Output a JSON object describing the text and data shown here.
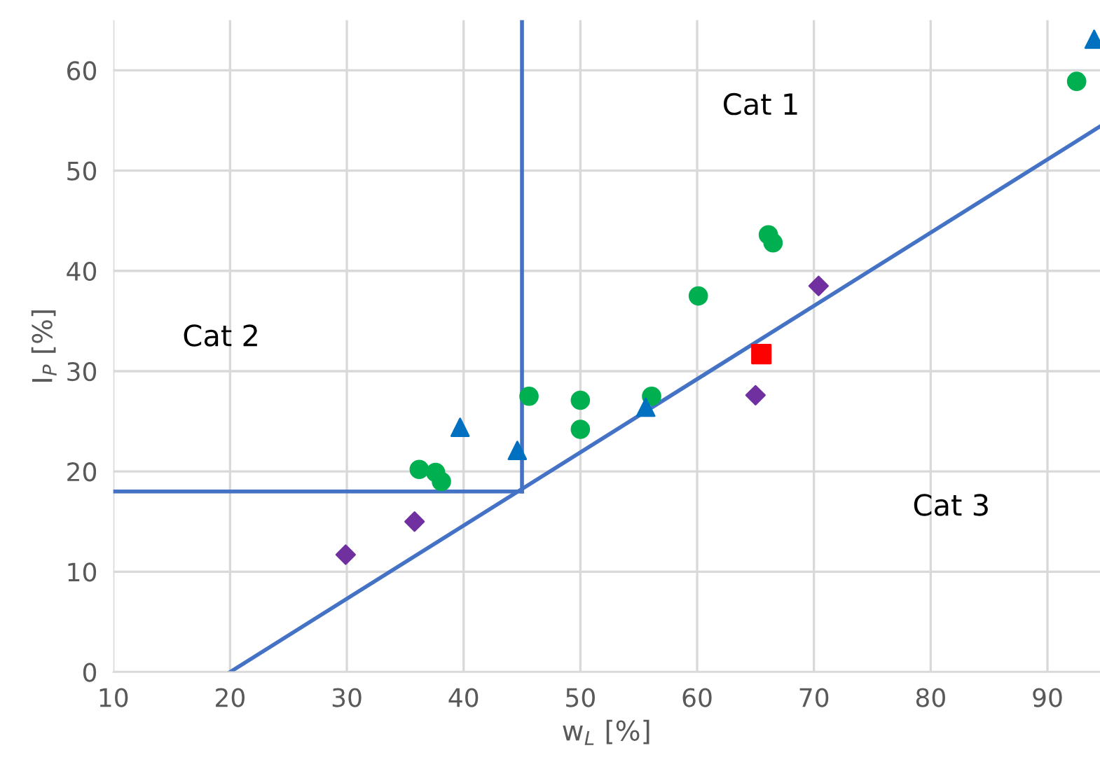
{
  "chart_data": {
    "type": "scatter",
    "xlabel": "w$_{L}$ [%]",
    "ylabel": "I$_{P}$ [%]",
    "xlim": [
      10,
      94.5
    ],
    "ylim": [
      0,
      65
    ],
    "xticks": [
      10,
      20,
      30,
      40,
      50,
      60,
      70,
      80,
      90
    ],
    "yticks": [
      0,
      10,
      20,
      30,
      40,
      50,
      60
    ],
    "grid": true,
    "legend": false,
    "series": [
      {
        "type": "line",
        "color": "#4472c4",
        "marker": "none",
        "x": [
          20,
          94.5
        ],
        "values": [
          0,
          54.4
        ]
      },
      {
        "type": "line",
        "color": "#4472c4",
        "marker": "none",
        "x": [
          45,
          45
        ],
        "values": [
          18,
          65
        ]
      },
      {
        "type": "line",
        "color": "#4472c4",
        "marker": "none",
        "x": [
          10,
          45
        ],
        "values": [
          18,
          18
        ]
      },
      {
        "color": "#00b050",
        "marker": "circle",
        "x": [
          36.2,
          37.6,
          38.1,
          45.6,
          50,
          50,
          56.1,
          60.1,
          66.1,
          66.5,
          92.5
        ],
        "values": [
          20.2,
          19.9,
          19,
          27.5,
          27.1,
          24.2,
          27.5,
          37.5,
          43.6,
          42.8,
          58.9
        ]
      },
      {
        "color": "#0070c0",
        "marker": "triangle",
        "x": [
          39.7,
          44.6,
          55.6,
          94
        ],
        "values": [
          24.4,
          22.1,
          26.4,
          63.1
        ]
      },
      {
        "color": "#7030a0",
        "marker": "diamond",
        "x": [
          29.9,
          35.8,
          65,
          70.4
        ],
        "values": [
          11.7,
          15,
          27.6,
          38.5
        ]
      },
      {
        "color": "#ff0000",
        "marker": "square",
        "x": [
          65.5
        ],
        "values": [
          31.7
        ]
      }
    ],
    "annotations": [
      "Cat 1",
      "Cat 2",
      "Cat 3"
    ]
  }
}
